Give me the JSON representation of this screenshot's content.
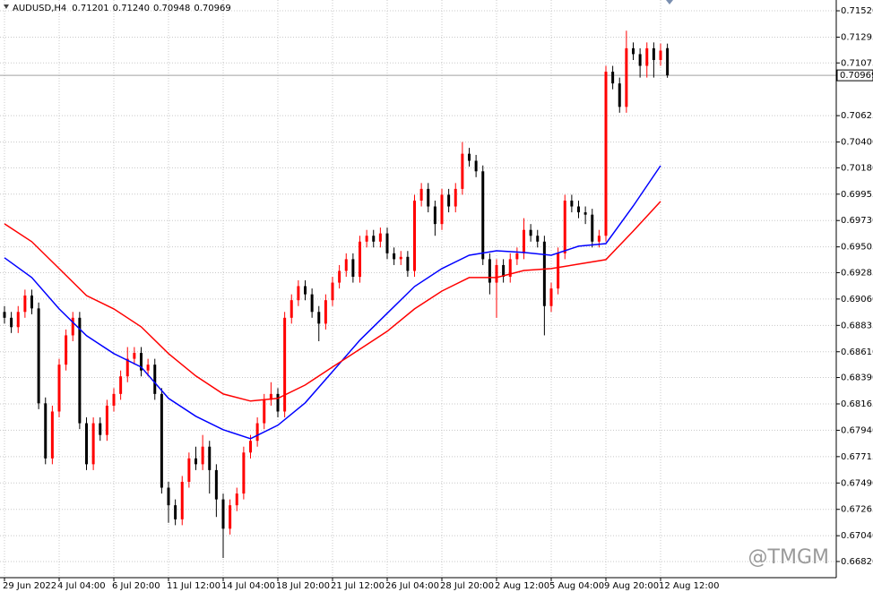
{
  "chart_data": {
    "type": "candlestick",
    "symbol": "AUDUSD,H4",
    "header_ohlc": [
      "0.71201",
      "0.71240",
      "0.70948",
      "0.70969"
    ],
    "watermark": "@TMGM",
    "categories": [
      "29 Jun 2022",
      null,
      null,
      null,
      null,
      null,
      null,
      null,
      "4 Jul 04:00",
      null,
      null,
      null,
      null,
      null,
      null,
      null,
      "6 Jul 20:00",
      null,
      null,
      null,
      null,
      null,
      null,
      null,
      "11 Jul 12:00",
      null,
      null,
      null,
      null,
      null,
      null,
      null,
      "14 Jul 04:00",
      null,
      null,
      null,
      null,
      null,
      null,
      null,
      "18 Jul 20:00",
      null,
      null,
      null,
      null,
      null,
      null,
      null,
      "21 Jul 12:00",
      null,
      null,
      null,
      null,
      null,
      null,
      null,
      "26 Jul 04:00",
      null,
      null,
      null,
      null,
      null,
      null,
      null,
      "28 Jul 20:00",
      null,
      null,
      null,
      null,
      null,
      null,
      null,
      "2 Aug 12:00",
      null,
      null,
      null,
      null,
      null,
      null,
      null,
      "5 Aug 04:00",
      null,
      null,
      null,
      null,
      null,
      null,
      null,
      "9 Aug 20:00",
      null,
      null,
      null,
      null,
      null,
      null,
      null,
      "12 Aug 12:00",
      null
    ],
    "open": [
      0.6895,
      0.689,
      0.6882,
      0.6895,
      0.6909,
      0.6898,
      0.6817,
      0.677,
      0.681,
      0.685,
      0.6875,
      0.689,
      0.68,
      0.6765,
      0.68,
      0.679,
      0.6815,
      0.6825,
      0.684,
      0.6855,
      0.686,
      0.6845,
      0.685,
      0.6825,
      0.6745,
      0.673,
      0.6718,
      0.675,
      0.677,
      0.6765,
      0.678,
      0.676,
      0.6735,
      0.671,
      0.673,
      0.674,
      0.6775,
      0.6785,
      0.68,
      0.682,
      0.6825,
      0.681,
      0.689,
      0.6905,
      0.6917,
      0.691,
      0.6895,
      0.6885,
      0.6905,
      0.692,
      0.693,
      0.694,
      0.6925,
      0.6955,
      0.696,
      0.6955,
      0.6962,
      0.6945,
      0.694,
      0.6942,
      0.693,
      0.699,
      0.7,
      0.6985,
      0.697,
      0.6995,
      0.6985,
      0.7,
      0.703,
      0.7024,
      0.7015,
      0.694,
      0.692,
      0.6935,
      0.6925,
      0.694,
      0.6945,
      0.6965,
      0.696,
      0.6955,
      0.69,
      0.6915,
      0.6945,
      0.699,
      0.6985,
      0.698,
      0.6978,
      0.6955,
      0.696,
      0.71,
      0.709,
      0.707,
      0.712,
      0.7115,
      0.7105,
      0.712,
      0.711,
      0.71201
    ],
    "high": [
      0.69,
      0.6895,
      0.69,
      0.6914,
      0.6914,
      0.6903,
      0.6822,
      0.6815,
      0.6855,
      0.688,
      0.6895,
      0.6895,
      0.6805,
      0.6805,
      0.6805,
      0.682,
      0.683,
      0.6845,
      0.6865,
      0.6865,
      0.6865,
      0.6855,
      0.6855,
      0.683,
      0.675,
      0.6735,
      0.6755,
      0.6775,
      0.678,
      0.679,
      0.6785,
      0.6765,
      0.674,
      0.6735,
      0.6745,
      0.678,
      0.679,
      0.6805,
      0.6825,
      0.6835,
      0.683,
      0.6895,
      0.691,
      0.6922,
      0.6922,
      0.6915,
      0.69,
      0.691,
      0.6925,
      0.6935,
      0.6945,
      0.6945,
      0.696,
      0.6965,
      0.6965,
      0.6967,
      0.6967,
      0.695,
      0.6947,
      0.6947,
      0.6995,
      0.7005,
      0.7005,
      0.699,
      0.7,
      0.7,
      0.7005,
      0.704,
      0.7035,
      0.7029,
      0.702,
      0.6945,
      0.694,
      0.694,
      0.6945,
      0.695,
      0.6975,
      0.697,
      0.6965,
      0.696,
      0.692,
      0.695,
      0.6995,
      0.6995,
      0.699,
      0.6985,
      0.6983,
      0.6965,
      0.7105,
      0.7105,
      0.7095,
      0.7135,
      0.7125,
      0.712,
      0.7125,
      0.7125,
      0.7124,
      0.7124
    ],
    "low": [
      0.6885,
      0.6877,
      0.6877,
      0.689,
      0.6893,
      0.6812,
      0.6765,
      0.6765,
      0.6805,
      0.6845,
      0.687,
      0.6795,
      0.676,
      0.676,
      0.6785,
      0.6785,
      0.681,
      0.682,
      0.6835,
      0.685,
      0.684,
      0.684,
      0.682,
      0.674,
      0.6715,
      0.6713,
      0.6713,
      0.6745,
      0.676,
      0.676,
      0.674,
      0.672,
      0.6685,
      0.6705,
      0.6725,
      0.6735,
      0.677,
      0.678,
      0.6795,
      0.6815,
      0.6805,
      0.6805,
      0.6885,
      0.69,
      0.6905,
      0.689,
      0.687,
      0.688,
      0.69,
      0.6915,
      0.6925,
      0.692,
      0.692,
      0.695,
      0.695,
      0.695,
      0.694,
      0.6935,
      0.6935,
      0.6925,
      0.6925,
      0.6985,
      0.698,
      0.696,
      0.6965,
      0.698,
      0.698,
      0.6995,
      0.7019,
      0.701,
      0.6935,
      0.691,
      0.689,
      0.692,
      0.692,
      0.6935,
      0.694,
      0.6955,
      0.695,
      0.6875,
      0.6895,
      0.691,
      0.694,
      0.698,
      0.6975,
      0.697,
      0.695,
      0.695,
      0.6955,
      0.7085,
      0.7065,
      0.7065,
      0.711,
      0.7095,
      0.7095,
      0.7095,
      0.7105,
      0.70948
    ],
    "close": [
      0.689,
      0.6882,
      0.6895,
      0.6909,
      0.6898,
      0.6817,
      0.677,
      0.681,
      0.685,
      0.6875,
      0.689,
      0.68,
      0.6765,
      0.68,
      0.679,
      0.6815,
      0.6825,
      0.684,
      0.6855,
      0.686,
      0.6845,
      0.685,
      0.6825,
      0.6745,
      0.673,
      0.6718,
      0.675,
      0.677,
      0.6765,
      0.678,
      0.676,
      0.6735,
      0.671,
      0.673,
      0.674,
      0.6775,
      0.6785,
      0.68,
      0.682,
      0.6825,
      0.681,
      0.689,
      0.6905,
      0.6917,
      0.691,
      0.6895,
      0.6885,
      0.6905,
      0.692,
      0.693,
      0.694,
      0.6925,
      0.6955,
      0.696,
      0.6955,
      0.6962,
      0.6945,
      0.694,
      0.6942,
      0.693,
      0.699,
      0.7,
      0.6985,
      0.697,
      0.6995,
      0.6985,
      0.7,
      0.703,
      0.7024,
      0.7015,
      0.694,
      0.692,
      0.6935,
      0.6925,
      0.694,
      0.6945,
      0.6965,
      0.696,
      0.6955,
      0.69,
      0.6915,
      0.6945,
      0.699,
      0.6985,
      0.698,
      0.6978,
      0.6955,
      0.696,
      0.71,
      0.709,
      0.707,
      0.712,
      0.7115,
      0.7105,
      0.712,
      0.711,
      0.7118,
      0.70969
    ],
    "up_color": "#ff0000",
    "down_color": "#000000",
    "series": [
      {
        "color": "#0000ff",
        "x": [
          0,
          4,
          8,
          12,
          16,
          20,
          24,
          28,
          32,
          36,
          40,
          44,
          48,
          52,
          56,
          60,
          64,
          68,
          72,
          76,
          80,
          84,
          88,
          92,
          96
        ],
        "values": [
          0.69412,
          0.69243,
          0.68976,
          0.68747,
          0.68594,
          0.6848,
          0.68212,
          0.68059,
          0.67945,
          0.67868,
          0.67983,
          0.68174,
          0.68441,
          0.68709,
          0.68938,
          0.69167,
          0.6932,
          0.69434,
          0.69472,
          0.69457,
          0.69434,
          0.69511,
          0.69533,
          0.69854,
          0.70198
        ]
      },
      {
        "color": "#ff0000",
        "x": [
          0,
          4,
          8,
          12,
          16,
          20,
          24,
          28,
          32,
          36,
          40,
          44,
          48,
          52,
          56,
          60,
          64,
          68,
          72,
          76,
          80,
          84,
          88,
          92,
          96
        ],
        "values": [
          0.69702,
          0.69549,
          0.6932,
          0.6909,
          0.68976,
          0.68823,
          0.68594,
          0.68403,
          0.6825,
          0.68189,
          0.68212,
          0.68326,
          0.6848,
          0.68632,
          0.68785,
          0.68976,
          0.69128,
          0.69243,
          0.69243,
          0.69304,
          0.6932,
          0.69358,
          0.69396,
          0.6964,
          0.69893
        ]
      }
    ],
    "current_price": 0.70969,
    "ylim": [
      0.66682,
      0.71612
    ],
    "yticks": [
      {
        "value": 0.7152,
        "label": "0.71520"
      },
      0.71295,
      0.71075,
      0.70625,
      {
        "value": 0.704,
        "label": "0.70400"
      },
      {
        "value": 0.7018,
        "label": "0.70180"
      },
      0.69955,
      {
        "value": 0.6973,
        "label": "0.69730"
      },
      0.69505,
      0.69285,
      {
        "value": 0.6906,
        "label": "0.69060"
      },
      0.68835,
      {
        "value": 0.6861,
        "label": "0.68610"
      },
      {
        "value": 0.6839,
        "label": "0.68390"
      },
      0.68165,
      {
        "value": 0.6794,
        "label": "0.67940"
      },
      0.67715,
      {
        "value": 0.6749,
        "label": "0.67490"
      },
      0.67265,
      {
        "value": 0.6704,
        "label": "0.67040"
      },
      {
        "value": 0.6682,
        "label": "0.66820"
      }
    ],
    "grid": true
  }
}
